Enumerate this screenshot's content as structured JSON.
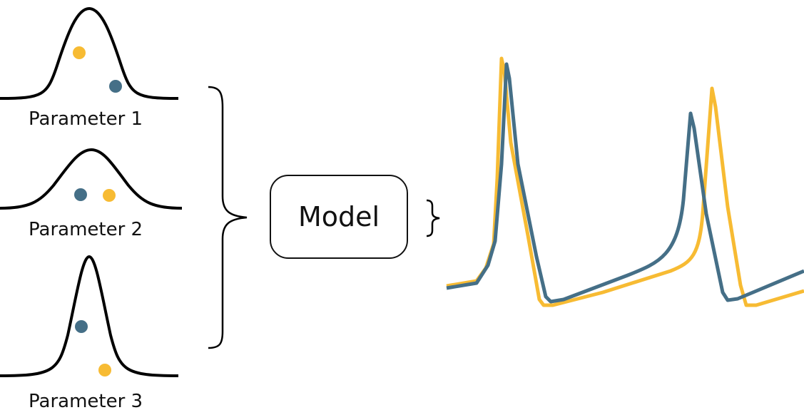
{
  "colors": {
    "sample_a": "#f7bb33",
    "sample_b": "#456f87",
    "curve": "#000000"
  },
  "parameters": [
    {
      "label": "Parameter 1"
    },
    {
      "label": "Parameter 2"
    },
    {
      "label": "Parameter 3"
    }
  ],
  "model": {
    "label": "Model"
  }
}
